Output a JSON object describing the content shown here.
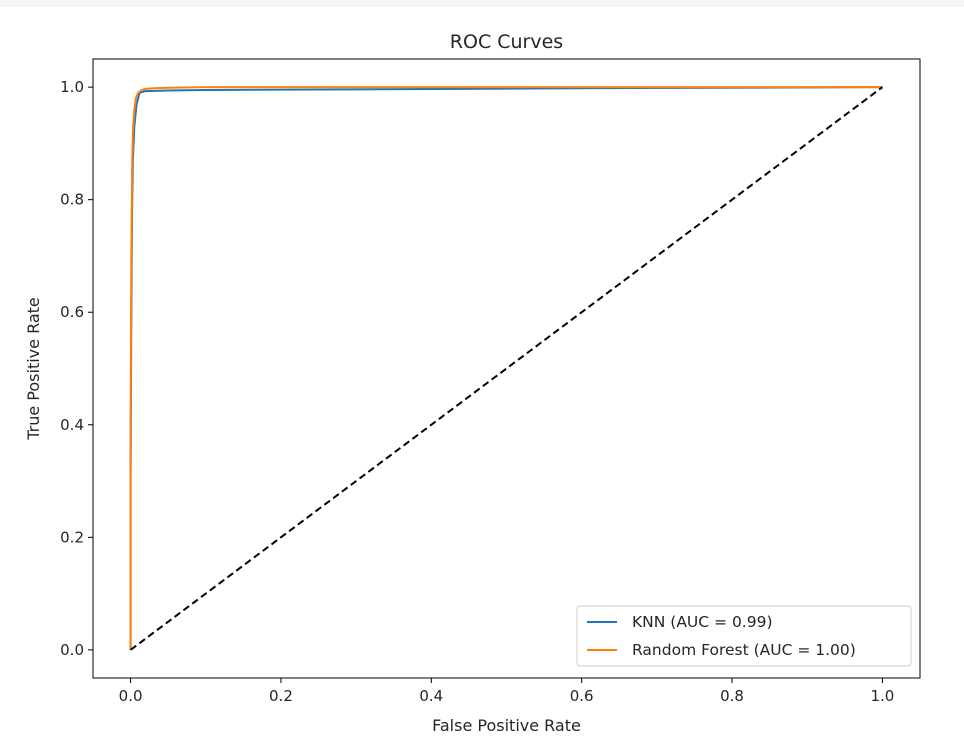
{
  "chart_data": {
    "type": "line",
    "title": "ROC Curves",
    "xlabel": "False Positive Rate",
    "ylabel": "True Positive Rate",
    "xlim": [
      -0.05,
      1.05
    ],
    "ylim": [
      -0.05,
      1.05
    ],
    "xticks": [
      0.0,
      0.2,
      0.4,
      0.6,
      0.8,
      1.0
    ],
    "xtick_labels": [
      "0.0",
      "0.2",
      "0.4",
      "0.6",
      "0.8",
      "1.0"
    ],
    "yticks": [
      0.0,
      0.2,
      0.4,
      0.6,
      0.8,
      1.0
    ],
    "ytick_labels": [
      "0.0",
      "0.2",
      "0.4",
      "0.6",
      "0.8",
      "1.0"
    ],
    "grid": false,
    "legend_position": "lower-right",
    "series": [
      {
        "name": "KNN (AUC = 0.99)",
        "color": "#1f77b4",
        "style": "solid",
        "x": [
          0.0,
          0.0,
          0.001,
          0.002,
          0.003,
          0.005,
          0.008,
          0.012,
          0.02,
          0.05,
          0.1,
          0.3,
          0.6,
          1.0
        ],
        "y": [
          0.0,
          0.3,
          0.6,
          0.78,
          0.87,
          0.93,
          0.97,
          0.99,
          0.993,
          0.994,
          0.995,
          0.996,
          0.998,
          1.0
        ]
      },
      {
        "name": "Random Forest (AUC = 1.00)",
        "color": "#ff7f0e",
        "style": "solid",
        "x": [
          0.0,
          0.0,
          0.001,
          0.002,
          0.003,
          0.005,
          0.007,
          0.01,
          0.015,
          0.02,
          0.03,
          0.05,
          0.1,
          0.3,
          0.6,
          1.0
        ],
        "y": [
          0.0,
          0.4,
          0.7,
          0.85,
          0.92,
          0.96,
          0.98,
          0.99,
          0.995,
          0.997,
          0.998,
          0.999,
          1.0,
          1.0,
          1.0,
          1.0
        ]
      },
      {
        "color": "#000000",
        "style": "dashed",
        "x": [
          0.0,
          1.0
        ],
        "y": [
          0.0,
          1.0
        ]
      }
    ]
  }
}
